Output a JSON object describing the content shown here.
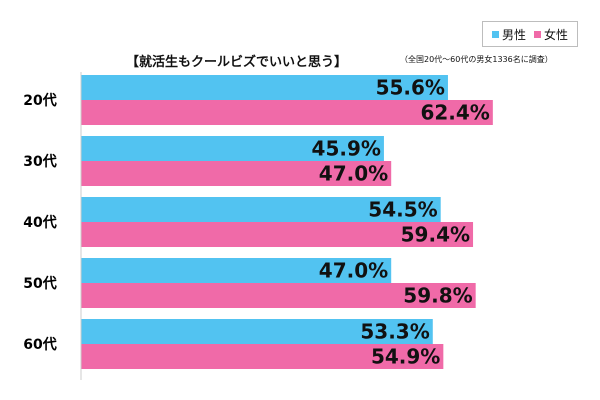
{
  "colors": {
    "male": "#52c3f1",
    "female": "#f06aa8",
    "background": "#ffffff",
    "axis": "#cccccc"
  },
  "legend": {
    "male": "男性",
    "female": "女性"
  },
  "chart_title": "【就活生もクールビズでいいと思う】",
  "survey_note": "（全国20代〜60代の男女1336名に調査）",
  "chart_data": {
    "type": "bar",
    "orientation": "horizontal",
    "title": "【就活生もクールビズでいいと思う】",
    "subtitle": "（全国20代〜60代の男女1336名に調査）",
    "categories": [
      "20代",
      "30代",
      "40代",
      "50代",
      "60代"
    ],
    "series": [
      {
        "name": "男性",
        "values": [
          55.6,
          45.9,
          54.5,
          47.0,
          53.3
        ],
        "labels": [
          "55.6%",
          "45.9%",
          "54.5%",
          "47.0%",
          "53.3%"
        ]
      },
      {
        "name": "女性",
        "values": [
          62.4,
          47.0,
          59.4,
          59.8,
          54.9
        ],
        "labels": [
          "62.4%",
          "47.0%",
          "59.4%",
          "59.8%",
          "54.9%"
        ]
      }
    ],
    "xlim": [
      0,
      100
    ],
    "unit": "%",
    "grid": false,
    "legend_position": "top-right"
  }
}
